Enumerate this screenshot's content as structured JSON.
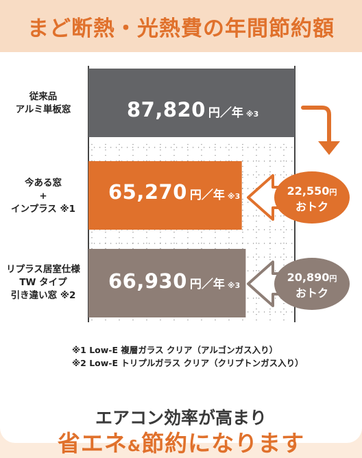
{
  "header": {
    "title": "まど断熱・光熱費の年間節約額"
  },
  "chart_data": {
    "type": "bar",
    "categories": [
      "従来品 アルミ単板窓",
      "今ある窓 + インプラス ※1",
      "リプラス居室仕様 TW タイプ 引き違い窓 ※2"
    ],
    "values": [
      87820,
      65270,
      66930
    ],
    "value_labels": [
      "87,820",
      "65,270",
      "66,930"
    ],
    "unit_label": "円／年",
    "value_note": "※3",
    "colors": [
      "#636467",
      "#e0712c",
      "#8e7e76"
    ],
    "xlim": [
      0,
      90000
    ],
    "savings": [
      {
        "amount": "22,550",
        "unit": "円",
        "text": "おトク",
        "color": "#e0712c"
      },
      {
        "amount": "20,890",
        "unit": "円",
        "text": "おトク",
        "color": "#8e7e76"
      }
    ]
  },
  "labels": {
    "row1": [
      "従来品",
      "アルミ単板窓"
    ],
    "row2": [
      "今ある窓",
      "+",
      "インプラス ※1"
    ],
    "row3": [
      "リプラス居室仕様",
      "TW タイプ",
      "引き違い窓 ※2"
    ]
  },
  "footnotes": [
    "※1 Low-E 複層ガラス クリア（アルゴンガス入り）",
    "※2 Low-E トリプルガラス クリア（クリプトンガス入り）"
  ],
  "bottom": {
    "line1": "エアコン効率が高まり",
    "line2_a": "省エネ",
    "line2_amp": "&",
    "line2_b": "節約になります"
  }
}
